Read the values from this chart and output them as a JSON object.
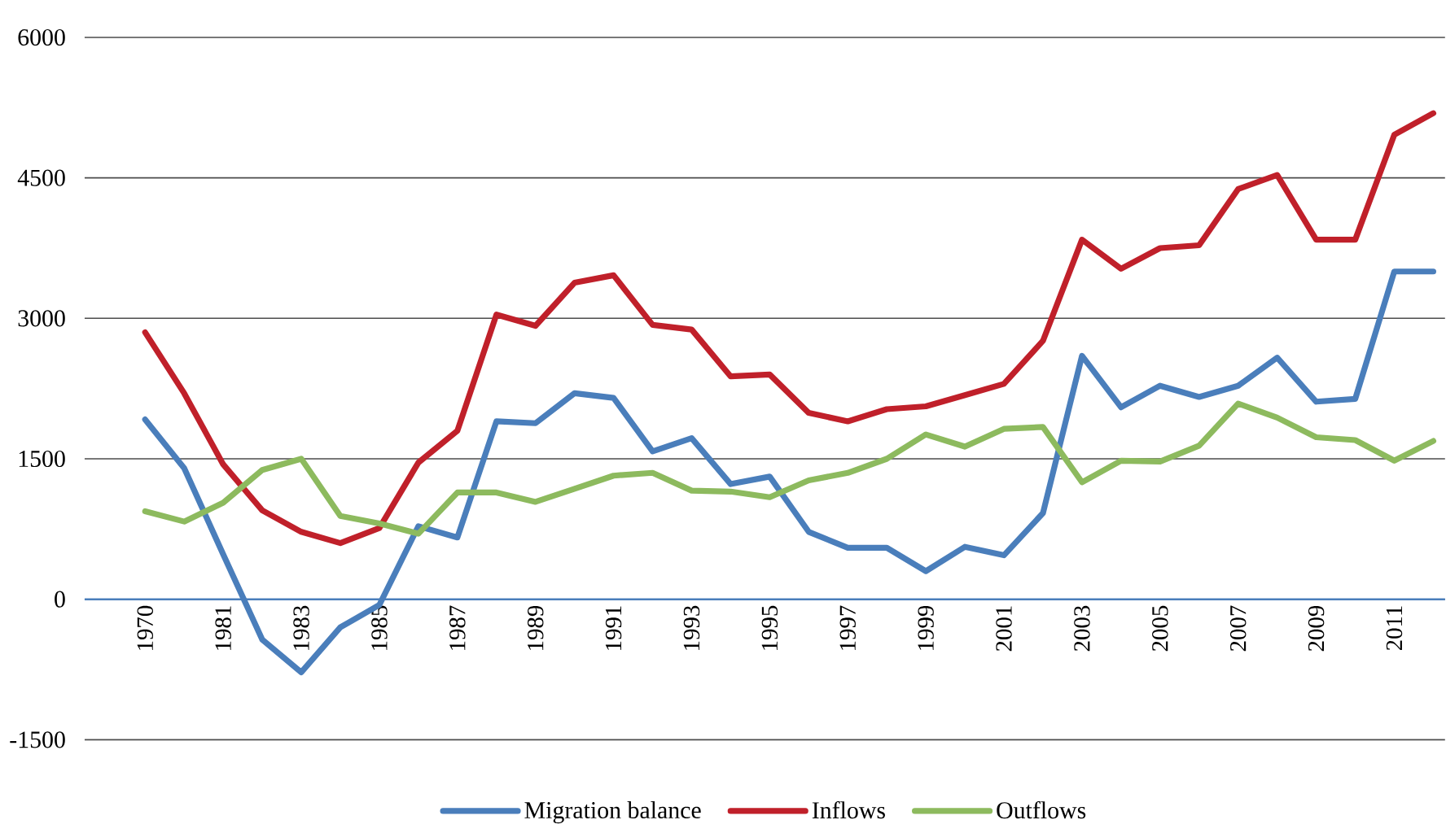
{
  "chart_data": {
    "type": "line",
    "categories": [
      "1970",
      null,
      "1981",
      null,
      "1983",
      null,
      "1985",
      null,
      "1987",
      null,
      "1989",
      null,
      "1991",
      null,
      "1993",
      null,
      "1995",
      null,
      "1997",
      null,
      "1999",
      null,
      "2001",
      null,
      "2003",
      null,
      "2005",
      null,
      "2007",
      null,
      "2009",
      null,
      "2011",
      null
    ],
    "series": [
      {
        "name": "Migration balance",
        "color": "#4a7ebb",
        "values": [
          1920,
          1400,
          480,
          -430,
          -780,
          -300,
          -60,
          780,
          660,
          1900,
          1880,
          2200,
          2150,
          1580,
          1720,
          1230,
          1310,
          720,
          550,
          550,
          300,
          560,
          470,
          920,
          2600,
          2050,
          2280,
          2160,
          2280,
          2580,
          2110,
          2140,
          3500,
          3500
        ]
      },
      {
        "name": "Inflows",
        "color": "#c0202a",
        "values": [
          2850,
          2200,
          1440,
          950,
          720,
          600,
          760,
          1460,
          1800,
          3040,
          2920,
          3380,
          3460,
          2930,
          2880,
          2380,
          2400,
          1990,
          1900,
          2030,
          2060,
          2180,
          2300,
          2760,
          3840,
          3530,
          3750,
          3780,
          4380,
          4530,
          3840,
          3840,
          4960,
          5190
        ]
      },
      {
        "name": "Outflows",
        "color": "#8dba5e",
        "values": [
          940,
          830,
          1030,
          1380,
          1500,
          890,
          810,
          700,
          1140,
          1140,
          1040,
          1180,
          1320,
          1350,
          1160,
          1150,
          1090,
          1270,
          1350,
          1500,
          1760,
          1630,
          1820,
          1840,
          1250,
          1480,
          1470,
          1640,
          2090,
          1940,
          1730,
          1700,
          1480,
          1690
        ]
      }
    ],
    "ylim": [
      -1500,
      6000
    ],
    "yticks": [
      -1500,
      0,
      1500,
      3000,
      4500,
      6000
    ],
    "grid": "y",
    "legend": "bottom",
    "marker": "none",
    "line_style": "solid"
  }
}
